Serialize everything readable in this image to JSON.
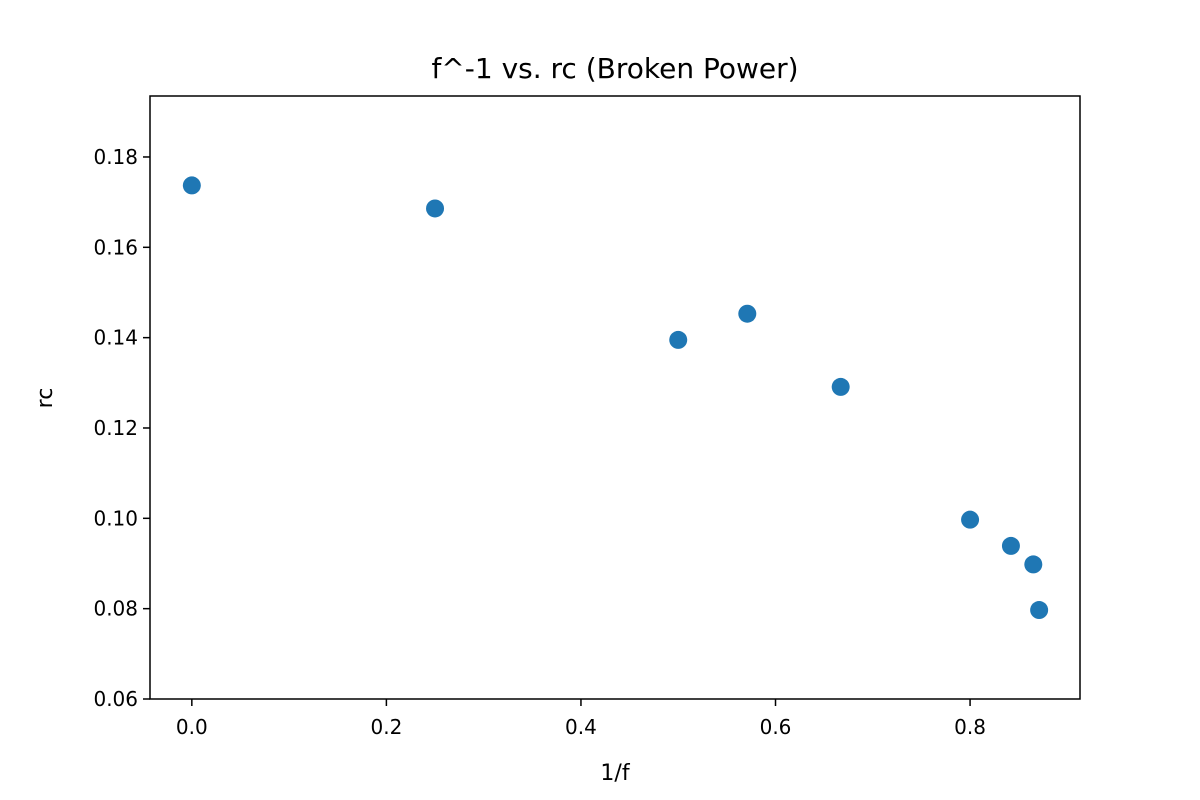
{
  "chart_data": {
    "type": "scatter",
    "title": "f^-1 vs. rc (Broken Power)",
    "xlabel": "1/f",
    "ylabel": "rc",
    "xlim": [
      -0.043,
      0.913
    ],
    "ylim": [
      0.06,
      0.1935
    ],
    "xticks": [
      0.0,
      0.2,
      0.4,
      0.6,
      0.8
    ],
    "xtick_labels": [
      "0.0",
      "0.2",
      "0.4",
      "0.6",
      "0.8"
    ],
    "yticks": [
      0.06,
      0.08,
      0.1,
      0.12,
      0.14,
      0.16,
      0.18
    ],
    "ytick_labels": [
      "0.06",
      "0.08",
      "0.10",
      "0.12",
      "0.14",
      "0.16",
      "0.18"
    ],
    "grid": false,
    "series": [
      {
        "color": "#1f77b4",
        "x": [
          0.0,
          0.25,
          0.5,
          0.571,
          0.667,
          0.8,
          0.842,
          0.865,
          0.871
        ],
        "y": [
          0.1737,
          0.1686,
          0.1395,
          0.1453,
          0.1291,
          0.0997,
          0.0939,
          0.0898,
          0.0797
        ]
      }
    ]
  }
}
